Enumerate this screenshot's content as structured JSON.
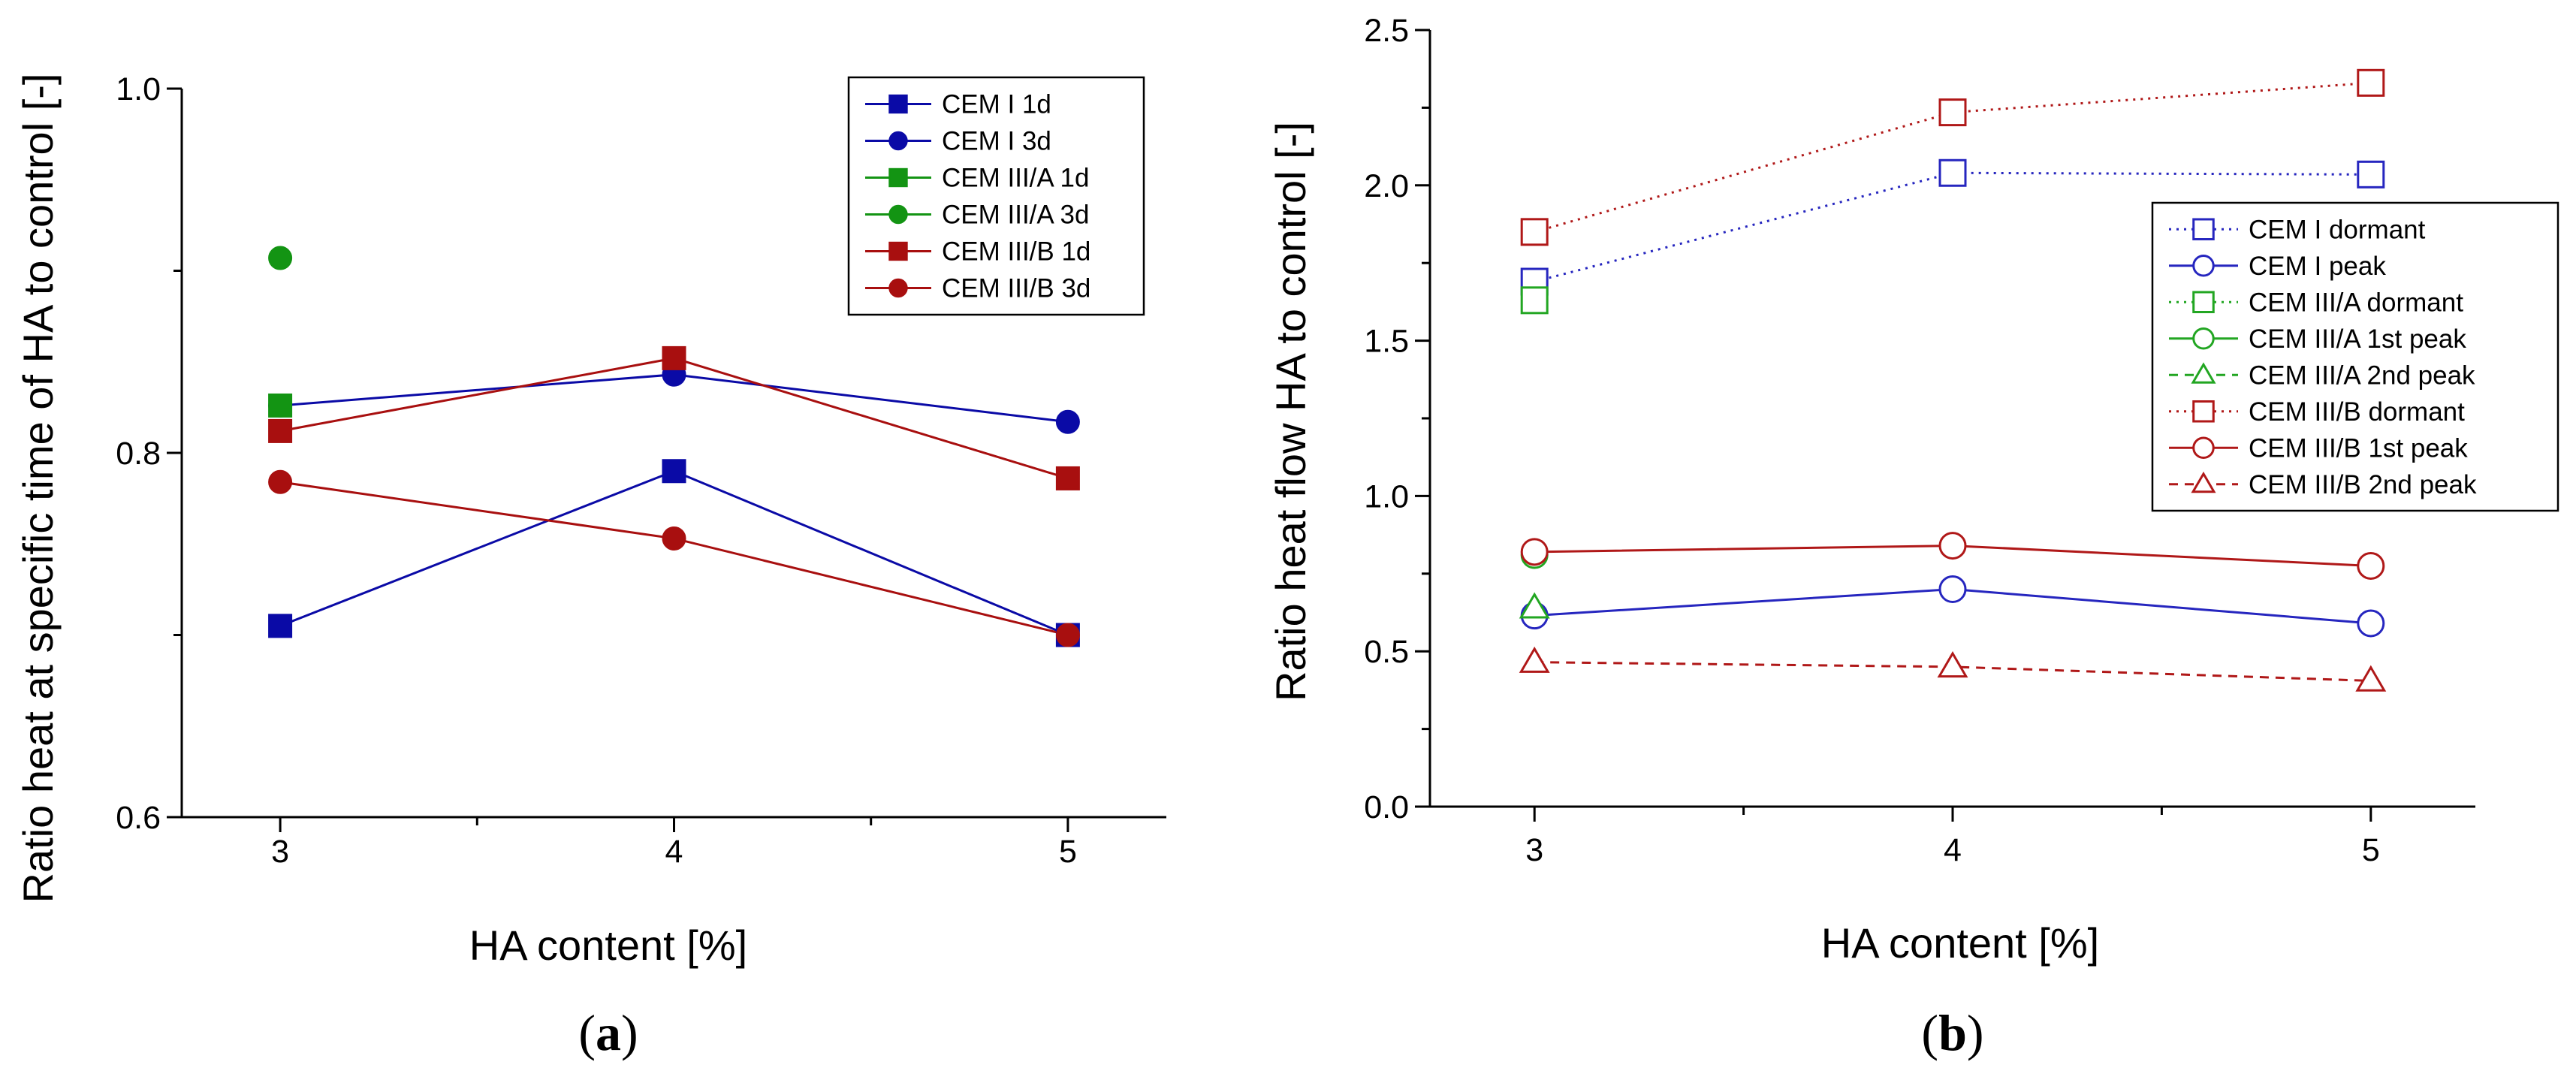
{
  "chart_data": [
    {
      "type": "line",
      "panel_label": "a",
      "xlabel": "HA content [%]",
      "ylabel": "Ratio heat at specific time of HA to control [-]",
      "xlim": [
        2.75,
        5.25
      ],
      "ylim": [
        0.6,
        1.0
      ],
      "xticks": [
        3,
        4,
        5
      ],
      "yticks": [
        0.6,
        0.8,
        1.0
      ],
      "ytick_labels": [
        "0.6",
        "0.8",
        "1.0"
      ],
      "legend_position": "top-right",
      "series": [
        {
          "name": "CEM I 1d",
          "color": "#0a0aa6",
          "marker": "square-filled",
          "line": "solid",
          "x": [
            3,
            4,
            5
          ],
          "values": [
            0.705,
            0.79,
            0.7
          ]
        },
        {
          "name": "CEM I 3d",
          "color": "#0a0aa6",
          "marker": "circle-filled",
          "line": "solid",
          "x": [
            3,
            4,
            5
          ],
          "values": [
            0.826,
            0.843,
            0.817
          ]
        },
        {
          "name": "CEM III/A 1d",
          "color": "#139413",
          "marker": "square-filled",
          "line": "solid",
          "x": [
            3
          ],
          "values": [
            0.826
          ]
        },
        {
          "name": "CEM III/A 3d",
          "color": "#139413",
          "marker": "circle-filled",
          "line": "solid",
          "x": [
            3
          ],
          "values": [
            0.907
          ]
        },
        {
          "name": "CEM III/B 1d",
          "color": "#a80f0f",
          "marker": "square-filled",
          "line": "solid",
          "x": [
            3,
            4,
            5
          ],
          "values": [
            0.812,
            0.852,
            0.786
          ]
        },
        {
          "name": "CEM III/B 3d",
          "color": "#a80f0f",
          "marker": "circle-filled",
          "line": "solid",
          "x": [
            3,
            4,
            5
          ],
          "values": [
            0.784,
            0.753,
            0.7
          ]
        }
      ]
    },
    {
      "type": "line",
      "panel_label": "b",
      "xlabel": "HA content [%]",
      "ylabel": "Ratio heat flow HA to control [-]",
      "xlim": [
        2.75,
        5.25
      ],
      "ylim": [
        0.0,
        2.5
      ],
      "xticks": [
        3,
        4,
        5
      ],
      "yticks": [
        0.0,
        0.5,
        1.0,
        1.5,
        2.0,
        2.5
      ],
      "ytick_labels": [
        "0.0",
        "0.5",
        "1.0",
        "1.5",
        "2.0",
        "2.5"
      ],
      "legend_position": "right",
      "series": [
        {
          "name": "CEM I dormant",
          "color": "#2626bf",
          "marker": "square-open",
          "line": "dotted",
          "x": [
            3,
            4,
            5
          ],
          "values": [
            1.69,
            2.04,
            2.035
          ]
        },
        {
          "name": "CEM I peak",
          "color": "#2626bf",
          "marker": "circle-open",
          "line": "solid",
          "x": [
            3,
            4,
            5
          ],
          "values": [
            0.615,
            0.7,
            0.59
          ]
        },
        {
          "name": "CEM III/A dormant",
          "color": "#22a622",
          "marker": "square-open",
          "line": "dotted",
          "x": [
            3
          ],
          "values": [
            1.63
          ]
        },
        {
          "name": "CEM III/A 1st peak",
          "color": "#22a622",
          "marker": "circle-open",
          "line": "solid",
          "x": [
            3
          ],
          "values": [
            0.81
          ]
        },
        {
          "name": "CEM III/A 2nd peak",
          "color": "#22a622",
          "marker": "triangle-open",
          "line": "dashed",
          "x": [
            3
          ],
          "values": [
            0.64
          ]
        },
        {
          "name": "CEM III/B dormant",
          "color": "#b01818",
          "marker": "square-open",
          "line": "dotted",
          "x": [
            3,
            4,
            5
          ],
          "values": [
            1.85,
            2.235,
            2.33
          ]
        },
        {
          "name": "CEM III/B 1st peak",
          "color": "#b01818",
          "marker": "circle-open",
          "line": "solid",
          "x": [
            3,
            4,
            5
          ],
          "values": [
            0.82,
            0.84,
            0.775
          ]
        },
        {
          "name": "CEM III/B 2nd peak",
          "color": "#b01818",
          "marker": "triangle-open",
          "line": "dashed",
          "x": [
            3,
            4,
            5
          ],
          "values": [
            0.465,
            0.45,
            0.405
          ]
        }
      ]
    }
  ]
}
